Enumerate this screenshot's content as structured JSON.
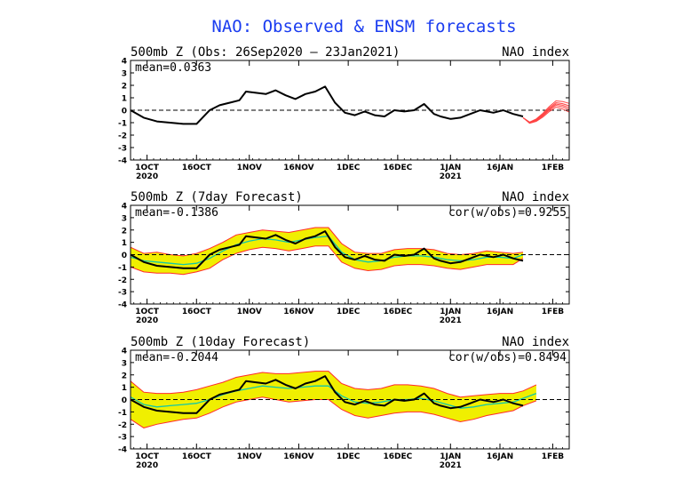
{
  "title": "NAO: Observed & ENSM forecasts",
  "colors": {
    "title": "#1a3cf0",
    "obs": "#000000",
    "ensemble_fill": "#f0ef00",
    "ensemble_edge": "#ff2a2a",
    "ensemble_mean": "#12c8a8",
    "forecast_tail": "#ff4444",
    "zero_line": "#000000"
  },
  "x_ticks": [
    {
      "day": 5,
      "label": "1OCT",
      "sub": "2020"
    },
    {
      "day": 20,
      "label": "16OCT",
      "sub": ""
    },
    {
      "day": 36,
      "label": "1NOV",
      "sub": ""
    },
    {
      "day": 51,
      "label": "16NOV",
      "sub": ""
    },
    {
      "day": 66,
      "label": "1DEC",
      "sub": ""
    },
    {
      "day": 81,
      "label": "16DEC",
      "sub": ""
    },
    {
      "day": 97,
      "label": "1JAN",
      "sub": "2021"
    },
    {
      "day": 112,
      "label": "16JAN",
      "sub": ""
    },
    {
      "day": 128,
      "label": "1FEB",
      "sub": ""
    }
  ],
  "x_range_days": [
    0,
    133
  ],
  "chart_data": [
    {
      "type": "line",
      "title_left": "500mb Z (Obs: 26Sep2020 — 23Jan2021)",
      "title_right": "NAO index",
      "mean_label": "mean=0.0363",
      "cor_label": "",
      "ylim": [
        -4,
        4
      ],
      "yticks": [
        "4",
        "3",
        "2",
        "1",
        "0",
        "-1",
        "-2",
        "-3",
        "-4"
      ],
      "series": [
        {
          "name": "observed NAO",
          "x": [
            0,
            4,
            8,
            12,
            16,
            20,
            24,
            27,
            30,
            33,
            35,
            38,
            41,
            44,
            47,
            50,
            53,
            56,
            59,
            62,
            65,
            68,
            71,
            74,
            77,
            80,
            83,
            86,
            89,
            92,
            94,
            97,
            100,
            103,
            106,
            110,
            113,
            116,
            119
          ],
          "y": [
            0.0,
            -0.6,
            -0.9,
            -1.0,
            -1.1,
            -1.1,
            0.0,
            0.4,
            0.6,
            0.8,
            1.5,
            1.4,
            1.3,
            1.6,
            1.2,
            0.9,
            1.3,
            1.5,
            1.9,
            0.6,
            -0.2,
            -0.4,
            -0.1,
            -0.4,
            -0.5,
            0.0,
            -0.1,
            0.0,
            0.5,
            -0.3,
            -0.5,
            -0.7,
            -0.6,
            -0.3,
            0.0,
            -0.2,
            0.0,
            -0.3,
            -0.5
          ]
        },
        {
          "name": "forecast tail",
          "x": [
            119,
            121,
            123,
            125,
            127,
            129,
            131,
            133
          ],
          "y": [
            -0.6,
            -1.0,
            -0.8,
            -0.4,
            0.1,
            0.5,
            0.4,
            0.2
          ]
        }
      ]
    },
    {
      "type": "line",
      "title_left": "500mb Z (7day Forecast)",
      "title_right": "NAO index",
      "mean_label": "mean=-0.1386",
      "cor_label": "cor(w/obs)=0.9255",
      "ylim": [
        -4,
        4
      ],
      "yticks": [
        "4",
        "3",
        "2",
        "1",
        "0",
        "-1",
        "-2",
        "-3",
        "-4"
      ],
      "series": [
        {
          "name": "observed NAO",
          "x": [
            0,
            4,
            8,
            12,
            16,
            20,
            24,
            27,
            30,
            33,
            35,
            38,
            41,
            44,
            47,
            50,
            53,
            56,
            59,
            62,
            65,
            68,
            71,
            74,
            77,
            80,
            83,
            86,
            89,
            92,
            94,
            97,
            100,
            103,
            106,
            110,
            113,
            116,
            119
          ],
          "y": [
            0.0,
            -0.6,
            -0.9,
            -1.0,
            -1.1,
            -1.1,
            0.0,
            0.4,
            0.6,
            0.8,
            1.5,
            1.4,
            1.3,
            1.6,
            1.2,
            0.9,
            1.3,
            1.5,
            1.9,
            0.6,
            -0.2,
            -0.4,
            -0.1,
            -0.4,
            -0.5,
            0.0,
            -0.1,
            0.0,
            0.5,
            -0.3,
            -0.5,
            -0.7,
            -0.6,
            -0.3,
            0.0,
            -0.2,
            0.0,
            -0.3,
            -0.5
          ]
        },
        {
          "name": "ensemble mean",
          "x": [
            0,
            4,
            8,
            12,
            16,
            20,
            24,
            28,
            32,
            36,
            40,
            44,
            48,
            52,
            56,
            60,
            64,
            68,
            72,
            76,
            80,
            84,
            88,
            92,
            96,
            100,
            104,
            108,
            112,
            116,
            119
          ],
          "y": [
            -0.2,
            -0.5,
            -0.6,
            -0.7,
            -0.8,
            -0.7,
            -0.3,
            0.3,
            0.8,
            1.1,
            1.3,
            1.2,
            1.0,
            1.2,
            1.4,
            1.5,
            0.2,
            -0.4,
            -0.6,
            -0.5,
            -0.2,
            -0.1,
            -0.1,
            -0.2,
            -0.4,
            -0.5,
            -0.4,
            -0.2,
            -0.2,
            -0.3,
            0.0
          ]
        },
        {
          "name": "ensemble max",
          "x": [
            0,
            4,
            8,
            12,
            16,
            20,
            24,
            28,
            32,
            36,
            40,
            44,
            48,
            52,
            56,
            60,
            64,
            68,
            72,
            76,
            80,
            84,
            88,
            92,
            96,
            100,
            104,
            108,
            112,
            116,
            119
          ],
          "y": [
            0.6,
            0.1,
            0.2,
            0.0,
            -0.1,
            0.1,
            0.5,
            1.0,
            1.6,
            1.8,
            2.0,
            1.9,
            1.8,
            2.0,
            2.2,
            2.2,
            0.9,
            0.2,
            0.1,
            0.1,
            0.4,
            0.5,
            0.5,
            0.4,
            0.1,
            0.0,
            0.1,
            0.3,
            0.2,
            0.1,
            0.2
          ]
        },
        {
          "name": "ensemble min",
          "x": [
            0,
            4,
            8,
            12,
            16,
            20,
            24,
            28,
            32,
            36,
            40,
            44,
            48,
            52,
            56,
            60,
            64,
            68,
            72,
            76,
            80,
            84,
            88,
            92,
            96,
            100,
            104,
            108,
            112,
            116,
            119
          ],
          "y": [
            -1.0,
            -1.4,
            -1.5,
            -1.5,
            -1.6,
            -1.4,
            -1.1,
            -0.4,
            0.1,
            0.4,
            0.6,
            0.5,
            0.3,
            0.5,
            0.7,
            0.7,
            -0.6,
            -1.1,
            -1.3,
            -1.2,
            -0.9,
            -0.8,
            -0.8,
            -0.9,
            -1.1,
            -1.2,
            -1.0,
            -0.8,
            -0.8,
            -0.8,
            -0.3
          ]
        }
      ]
    },
    {
      "type": "line",
      "title_left": "500mb Z (10day Forecast)",
      "title_right": "NAO index",
      "mean_label": "mean=-0.2044",
      "cor_label": "cor(w/obs)=0.8494",
      "ylim": [
        -4,
        4
      ],
      "yticks": [
        "4",
        "3",
        "2",
        "1",
        "0",
        "-1",
        "-2",
        "-3",
        "-4"
      ],
      "series": [
        {
          "name": "observed NAO",
          "x": [
            0,
            4,
            8,
            12,
            16,
            20,
            24,
            27,
            30,
            33,
            35,
            38,
            41,
            44,
            47,
            50,
            53,
            56,
            59,
            62,
            65,
            68,
            71,
            74,
            77,
            80,
            83,
            86,
            89,
            92,
            94,
            97,
            100,
            103,
            106,
            110,
            113,
            116,
            119
          ],
          "y": [
            0.0,
            -0.6,
            -0.9,
            -1.0,
            -1.1,
            -1.1,
            0.0,
            0.4,
            0.6,
            0.8,
            1.5,
            1.4,
            1.3,
            1.6,
            1.2,
            0.9,
            1.3,
            1.5,
            1.9,
            0.6,
            -0.2,
            -0.4,
            -0.1,
            -0.4,
            -0.5,
            0.0,
            -0.1,
            0.0,
            0.5,
            -0.3,
            -0.5,
            -0.7,
            -0.6,
            -0.3,
            0.0,
            -0.2,
            0.0,
            -0.3,
            -0.5
          ]
        },
        {
          "name": "ensemble mean",
          "x": [
            0,
            4,
            8,
            12,
            16,
            20,
            24,
            28,
            32,
            36,
            40,
            44,
            48,
            52,
            56,
            60,
            64,
            68,
            72,
            76,
            80,
            84,
            88,
            92,
            96,
            100,
            104,
            108,
            112,
            116,
            119,
            123
          ],
          "y": [
            0.2,
            -0.4,
            -0.6,
            -0.5,
            -0.4,
            -0.3,
            0.0,
            0.4,
            0.7,
            0.9,
            1.1,
            1.0,
            0.9,
            1.0,
            1.1,
            1.1,
            0.3,
            -0.2,
            -0.3,
            -0.2,
            0.0,
            0.0,
            0.1,
            -0.1,
            -0.4,
            -0.7,
            -0.6,
            -0.4,
            -0.3,
            -0.2,
            0.1,
            0.5
          ]
        },
        {
          "name": "ensemble max",
          "x": [
            0,
            4,
            8,
            12,
            16,
            20,
            24,
            28,
            32,
            36,
            40,
            44,
            48,
            52,
            56,
            60,
            64,
            68,
            72,
            76,
            80,
            84,
            88,
            92,
            96,
            100,
            104,
            108,
            112,
            116,
            119,
            123
          ],
          "y": [
            1.5,
            0.6,
            0.5,
            0.5,
            0.6,
            0.8,
            1.1,
            1.4,
            1.8,
            2.0,
            2.2,
            2.1,
            2.1,
            2.2,
            2.3,
            2.3,
            1.3,
            0.9,
            0.8,
            0.9,
            1.2,
            1.2,
            1.1,
            0.9,
            0.5,
            0.2,
            0.3,
            0.4,
            0.5,
            0.5,
            0.7,
            1.2
          ]
        },
        {
          "name": "ensemble min",
          "x": [
            0,
            4,
            8,
            12,
            16,
            20,
            24,
            28,
            32,
            36,
            40,
            44,
            48,
            52,
            56,
            60,
            64,
            68,
            72,
            76,
            80,
            84,
            88,
            92,
            96,
            100,
            104,
            108,
            112,
            116,
            119,
            123
          ],
          "y": [
            -1.6,
            -2.3,
            -2.0,
            -1.8,
            -1.6,
            -1.5,
            -1.1,
            -0.6,
            -0.2,
            0.0,
            0.2,
            0.0,
            -0.2,
            -0.1,
            0.0,
            0.0,
            -0.8,
            -1.3,
            -1.5,
            -1.3,
            -1.1,
            -1.0,
            -1.0,
            -1.2,
            -1.5,
            -1.8,
            -1.6,
            -1.3,
            -1.1,
            -0.9,
            -0.5,
            -0.1
          ]
        }
      ]
    }
  ]
}
